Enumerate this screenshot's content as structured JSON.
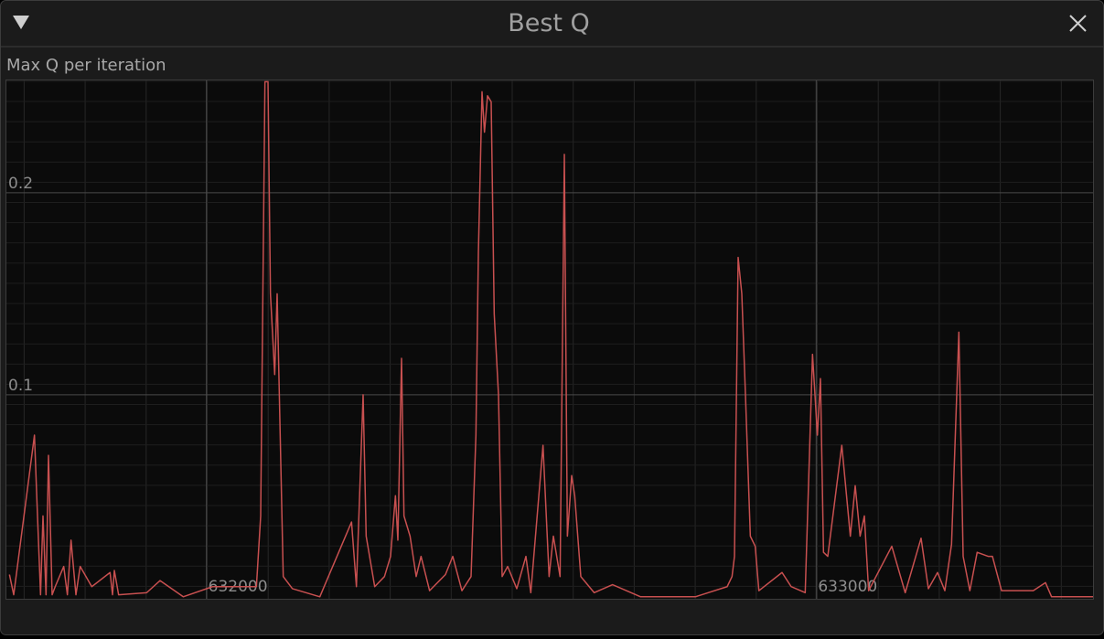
{
  "window": {
    "title": "Best Q"
  },
  "chart_data": {
    "type": "line",
    "title": "Max Q per iteration",
    "x": [
      631677,
      631684,
      631718,
      631723,
      631728,
      631732,
      631737,
      631741,
      631747,
      631752,
      631766,
      631772,
      631778,
      631786,
      631793,
      631812,
      631842,
      631846,
      631849,
      631856,
      631902,
      631924,
      631962,
      632010,
      632082,
      632089,
      632096,
      632101,
      632105,
      632112,
      632116,
      632126,
      632141,
      632186,
      632238,
      632246,
      632257,
      632262,
      632276,
      632292,
      632302,
      632310,
      632314,
      632320,
      632324,
      632334,
      632344,
      632352,
      632366,
      632392,
      632404,
      632419,
      632434,
      632442,
      632446,
      632452,
      632456,
      632461,
      632467,
      632472,
      632479,
      632485,
      632494,
      632509,
      632524,
      632532,
      632552,
      632562,
      632569,
      632580,
      632587,
      632592,
      632599,
      632604,
      632614,
      632636,
      632666,
      632712,
      632802,
      632854,
      632862,
      632866,
      632872,
      632878,
      632884,
      632892,
      632900,
      632906,
      632944,
      632959,
      632982,
      632994,
      632998,
      633002,
      633007,
      633012,
      633019,
      633042,
      633056,
      633064,
      633072,
      633079,
      633086,
      633124,
      633146,
      633172,
      633184,
      633199,
      633211,
      633222,
      633234,
      633241,
      633252,
      633264,
      633282,
      633289,
      633304,
      633356,
      633376,
      633386,
      633454
    ],
    "series": [
      {
        "color": "#c85050",
        "values": [
          0.011,
          0.001,
          0.08,
          0.04,
          0.001,
          0.04,
          0.001,
          0.07,
          0.001,
          0.005,
          0.015,
          0.001,
          0.028,
          0.001,
          0.015,
          0.005,
          0.012,
          0.001,
          0.013,
          0.001,
          0.002,
          0.008,
          0,
          0.005,
          0.005,
          0.04,
          0.255,
          0.255,
          0.15,
          0.11,
          0.15,
          0.01,
          0.004,
          0,
          0.037,
          0.005,
          0.1,
          0.03,
          0.005,
          0.01,
          0.02,
          0.05,
          0.028,
          0.118,
          0.04,
          0.03,
          0.01,
          0.02,
          0.003,
          0.011,
          0.02,
          0.003,
          0.01,
          0.08,
          0.17,
          0.25,
          0.23,
          0.248,
          0.245,
          0.14,
          0.1,
          0.01,
          0.015,
          0.004,
          0.02,
          0.002,
          0.075,
          0.01,
          0.03,
          0.01,
          0.219,
          0.03,
          0.06,
          0.05,
          0.01,
          0.002,
          0.006,
          0,
          0,
          0.005,
          0.01,
          0.02,
          0.168,
          0.15,
          0.1,
          0.03,
          0.025,
          0.003,
          0.012,
          0.005,
          0.002,
          0.12,
          0.1,
          0.08,
          0.108,
          0.022,
          0.02,
          0.075,
          0.03,
          0.055,
          0.03,
          0.04,
          0.003,
          0.025,
          0.002,
          0.029,
          0.004,
          0.012,
          0.003,
          0.026,
          0.131,
          0.02,
          0.003,
          0.022,
          0.02,
          0.02,
          0.003,
          0.003,
          0.007,
          0,
          0
        ]
      }
    ],
    "xlim": [
      631672,
      633454
    ],
    "ylim": [
      -0.001,
      0.2556
    ],
    "xticks": [
      632000,
      633000
    ],
    "yticks": [
      0.1,
      0.2
    ]
  }
}
